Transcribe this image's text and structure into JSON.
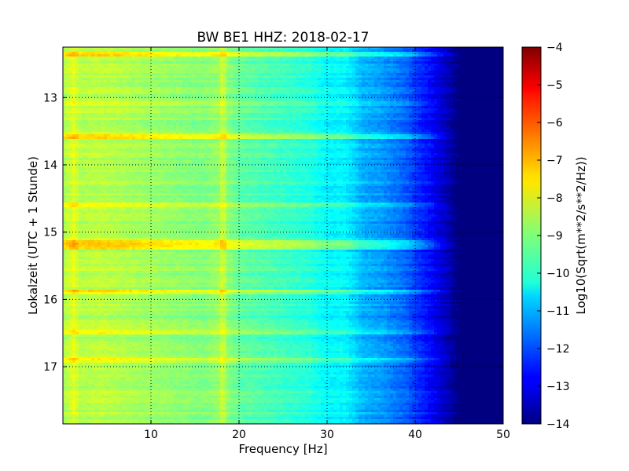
{
  "chart_data": {
    "type": "heatmap",
    "title": "BW BE1 HHZ: 2018-02-17",
    "xlabel": "Frequency [Hz]",
    "ylabel": "Lokalzeit (UTC + 1 Stunde)",
    "xlim": [
      0,
      50
    ],
    "ylim": [
      12.25,
      17.85
    ],
    "y_inverted": true,
    "x_ticks": [
      10,
      20,
      30,
      40,
      50
    ],
    "x_tick_labels": [
      "10",
      "20",
      "30",
      "40",
      "50"
    ],
    "y_ticks": [
      13,
      14,
      15,
      16,
      17
    ],
    "y_tick_labels": [
      "13",
      "14",
      "15",
      "16",
      "17"
    ],
    "grid": true,
    "colormap": "jet",
    "colorbar": {
      "label": "Log10(Sqrt(m**2/s**2/Hz))",
      "range": [
        -14,
        -4
      ],
      "ticks": [
        -4,
        -5,
        -6,
        -7,
        -8,
        -9,
        -10,
        -11,
        -12,
        -13,
        -14
      ],
      "tick_labels": [
        "−4",
        "−5",
        "−6",
        "−7",
        "−8",
        "−9",
        "−10",
        "−11",
        "−12",
        "−13",
        "−14"
      ]
    },
    "frequency_profile": {
      "frequency_hz": [
        0,
        0.8,
        1.2,
        2,
        4,
        8,
        12,
        16,
        18,
        20,
        24,
        28,
        30,
        32,
        33,
        34,
        36,
        38,
        39,
        40,
        41,
        42,
        43,
        44,
        44.5,
        45,
        50
      ],
      "log10_amplitude": [
        -8.6,
        -8.3,
        -8.0,
        -8.5,
        -8.4,
        -8.6,
        -8.8,
        -9.0,
        -8.7,
        -9.3,
        -9.6,
        -9.9,
        -10.3,
        -10.3,
        -10.6,
        -11.0,
        -11.2,
        -11.6,
        -11.8,
        -12.2,
        -12.5,
        -12.8,
        -13.2,
        -13.6,
        -13.9,
        -14,
        -14
      ]
    },
    "horizontal_events": [
      {
        "time": 12.35,
        "boost": 0.9
      },
      {
        "time": 13.08,
        "boost": 0.5
      },
      {
        "time": 13.57,
        "boost": 1.0
      },
      {
        "time": 14.6,
        "boost": 0.7
      },
      {
        "time": 15.15,
        "boost": 1.3
      },
      {
        "time": 15.24,
        "boost": 1.0
      },
      {
        "time": 15.88,
        "boost": 0.9
      },
      {
        "time": 16.5,
        "boost": 0.5
      },
      {
        "time": 16.9,
        "boost": 0.7
      }
    ]
  }
}
